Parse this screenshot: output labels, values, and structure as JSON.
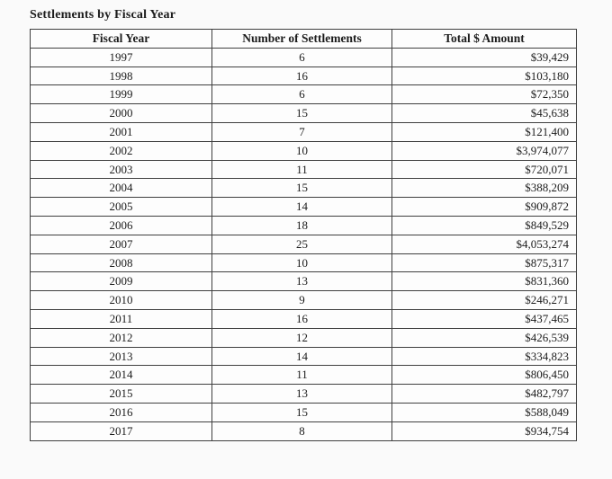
{
  "page": {
    "background": "#fafafa",
    "text_color": "#1c1c1c",
    "border_color": "#3f3f3f"
  },
  "table": {
    "title": "Settlements by Fiscal Year",
    "headers": [
      "Fiscal Year",
      "Number of Settlements",
      "Total $ Amount"
    ],
    "rows": [
      [
        "1997",
        "6",
        "$39,429"
      ],
      [
        "1998",
        "16",
        "$103,180"
      ],
      [
        "1999",
        "6",
        "$72,350"
      ],
      [
        "2000",
        "15",
        "$45,638"
      ],
      [
        "2001",
        "7",
        "$121,400"
      ],
      [
        "2002",
        "10",
        "$3,974,077"
      ],
      [
        "2003",
        "11",
        "$720,071"
      ],
      [
        "2004",
        "15",
        "$388,209"
      ],
      [
        "2005",
        "14",
        "$909,872"
      ],
      [
        "2006",
        "18",
        "$849,529"
      ],
      [
        "2007",
        "25",
        "$4,053,274"
      ],
      [
        "2008",
        "10",
        "$875,317"
      ],
      [
        "2009",
        "13",
        "$831,360"
      ],
      [
        "2010",
        "9",
        "$246,271"
      ],
      [
        "2011",
        "16",
        "$437,465"
      ],
      [
        "2012",
        "12",
        "$426,539"
      ],
      [
        "2013",
        "14",
        "$334,823"
      ],
      [
        "2014",
        "11",
        "$806,450"
      ],
      [
        "2015",
        "13",
        "$482,797"
      ],
      [
        "2016",
        "15",
        "$588,049"
      ],
      [
        "2017",
        "8",
        "$934,754"
      ]
    ]
  },
  "chart_data": {
    "type": "table",
    "title": "Settlements by Fiscal Year",
    "columns": [
      "Fiscal Year",
      "Number of Settlements",
      "Total $ Amount"
    ],
    "categories": [
      1997,
      1998,
      1999,
      2000,
      2001,
      2002,
      2003,
      2004,
      2005,
      2006,
      2007,
      2008,
      2009,
      2010,
      2011,
      2012,
      2013,
      2014,
      2015,
      2016,
      2017
    ],
    "series": [
      {
        "name": "Number of Settlements",
        "values": [
          6,
          16,
          6,
          15,
          7,
          10,
          11,
          15,
          14,
          18,
          25,
          10,
          13,
          9,
          16,
          12,
          14,
          11,
          13,
          15,
          8
        ]
      },
      {
        "name": "Total $ Amount",
        "values": [
          39429,
          103180,
          72350,
          45638,
          121400,
          3974077,
          720071,
          388209,
          909872,
          849529,
          4053274,
          875317,
          831360,
          246271,
          437465,
          426539,
          334823,
          806450,
          482797,
          588049,
          934754
        ]
      }
    ]
  }
}
